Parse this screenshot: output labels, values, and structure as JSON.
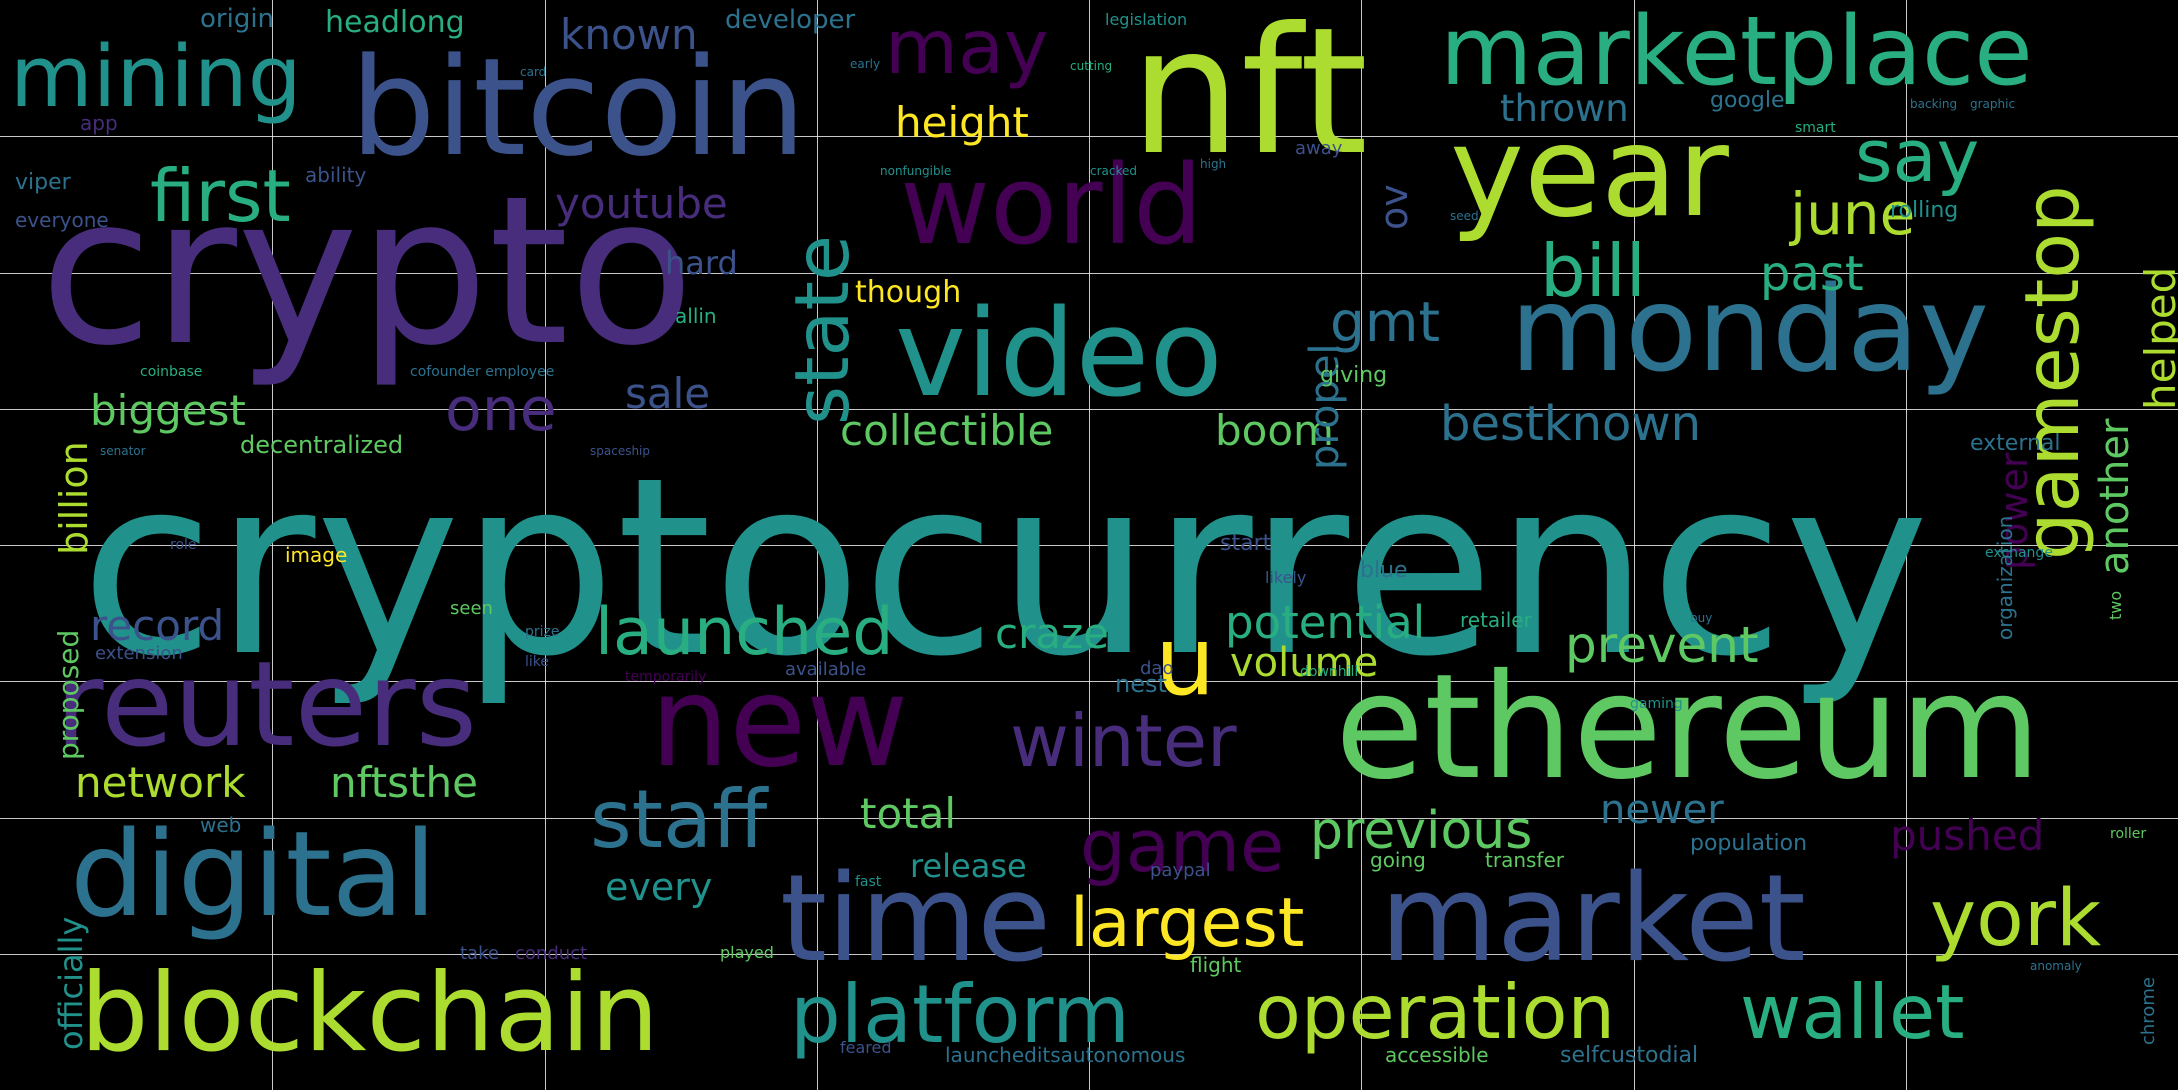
{
  "colors": {
    "background": "#000000",
    "grid": "#ebebeb",
    "palette": {
      "d": "#440154",
      "p": "#472d7b",
      "b": "#3b528b",
      "t": "#2c728e",
      "c": "#21918c",
      "g": "#28ae80",
      "l": "#5ec962",
      "y": "#addc30",
      "s": "#fde725"
    }
  },
  "words": [
    {
      "text": "cryptocurrency",
      "color": "c"
    },
    {
      "text": "crypto",
      "color": "p"
    },
    {
      "text": "nft",
      "color": "y"
    },
    {
      "text": "bitcoin",
      "color": "b"
    },
    {
      "text": "marketplace",
      "color": "g"
    },
    {
      "text": "year",
      "color": "y"
    },
    {
      "text": "mining",
      "color": "c"
    },
    {
      "text": "world",
      "color": "d"
    },
    {
      "text": "video",
      "color": "c"
    },
    {
      "text": "monday",
      "color": "t"
    },
    {
      "text": "ethereum",
      "color": "l"
    },
    {
      "text": "reuters",
      "color": "p"
    },
    {
      "text": "new",
      "color": "d"
    },
    {
      "text": "digital",
      "color": "t"
    },
    {
      "text": "time",
      "color": "b"
    },
    {
      "text": "market",
      "color": "b"
    },
    {
      "text": "blockchain",
      "color": "y"
    },
    {
      "text": "platform",
      "color": "c"
    },
    {
      "text": "operation",
      "color": "y"
    },
    {
      "text": "wallet",
      "color": "g"
    },
    {
      "text": "york",
      "color": "y"
    },
    {
      "text": "u",
      "color": "s"
    },
    {
      "text": "largest",
      "color": "s"
    },
    {
      "text": "staff",
      "color": "t"
    },
    {
      "text": "game",
      "color": "d"
    },
    {
      "text": "winter",
      "color": "p"
    },
    {
      "text": "launched",
      "color": "g"
    },
    {
      "text": "gamestop",
      "color": "y"
    },
    {
      "text": "first",
      "color": "g"
    },
    {
      "text": "may",
      "color": "d"
    },
    {
      "text": "say",
      "color": "g"
    },
    {
      "text": "bill",
      "color": "g"
    },
    {
      "text": "june",
      "color": "y"
    },
    {
      "text": "state",
      "color": "c"
    },
    {
      "text": "one",
      "color": "p"
    },
    {
      "text": "gmt",
      "color": "t"
    },
    {
      "text": "previous",
      "color": "l"
    },
    {
      "text": "prevent",
      "color": "l"
    },
    {
      "text": "potential",
      "color": "g"
    },
    {
      "text": "craze",
      "color": "g"
    },
    {
      "text": "record",
      "color": "b"
    },
    {
      "text": "biggest",
      "color": "l"
    },
    {
      "text": "collectible",
      "color": "l"
    },
    {
      "text": "boom",
      "color": "l"
    },
    {
      "text": "bestknown",
      "color": "t"
    },
    {
      "text": "network",
      "color": "y"
    },
    {
      "text": "nftsthe",
      "color": "l"
    },
    {
      "text": "total",
      "color": "l"
    },
    {
      "text": "youtube",
      "color": "p"
    },
    {
      "text": "known",
      "color": "b"
    },
    {
      "text": "height",
      "color": "s"
    },
    {
      "text": "thrown",
      "color": "t"
    },
    {
      "text": "past",
      "color": "g"
    },
    {
      "text": "sale",
      "color": "b"
    },
    {
      "text": "volume",
      "color": "y"
    },
    {
      "text": "newer",
      "color": "t"
    },
    {
      "text": "pushed",
      "color": "d"
    },
    {
      "text": "every",
      "color": "c"
    },
    {
      "text": "release",
      "color": "c"
    },
    {
      "text": "billion",
      "color": "y"
    },
    {
      "text": "officially",
      "color": "c"
    },
    {
      "text": "proposed",
      "color": "l"
    },
    {
      "text": "helped",
      "color": "y"
    },
    {
      "text": "another",
      "color": "l"
    },
    {
      "text": "power",
      "color": "d"
    },
    {
      "text": "propel",
      "color": "t"
    },
    {
      "text": "ov",
      "color": "b"
    },
    {
      "text": "headlong",
      "color": "g"
    },
    {
      "text": "origin",
      "color": "t"
    },
    {
      "text": "developer",
      "color": "t"
    },
    {
      "text": "legislation",
      "color": "c"
    },
    {
      "text": "google",
      "color": "t"
    },
    {
      "text": "viper",
      "color": "t"
    },
    {
      "text": "ability",
      "color": "b"
    },
    {
      "text": "everyone",
      "color": "b"
    },
    {
      "text": "though",
      "color": "s"
    },
    {
      "text": "hard",
      "color": "b"
    },
    {
      "text": "allin",
      "color": "g"
    },
    {
      "text": "decentralized",
      "color": "l"
    },
    {
      "text": "extension",
      "color": "b"
    },
    {
      "text": "giving",
      "color": "l"
    },
    {
      "text": "retailer",
      "color": "g"
    },
    {
      "text": "rolling",
      "color": "c"
    },
    {
      "text": "external",
      "color": "t"
    },
    {
      "text": "organization",
      "color": "t"
    },
    {
      "text": "nest",
      "color": "t"
    },
    {
      "text": "blue",
      "color": "t"
    },
    {
      "text": "start",
      "color": "b"
    },
    {
      "text": "image",
      "color": "s"
    },
    {
      "text": "seen",
      "color": "l"
    },
    {
      "text": "available",
      "color": "b"
    },
    {
      "text": "paypal",
      "color": "b"
    },
    {
      "text": "going",
      "color": "l"
    },
    {
      "text": "transfer",
      "color": "l"
    },
    {
      "text": "population",
      "color": "t"
    },
    {
      "text": "web",
      "color": "t"
    },
    {
      "text": "take",
      "color": "b"
    },
    {
      "text": "conduct",
      "color": "p"
    },
    {
      "text": "played",
      "color": "l"
    },
    {
      "text": "flight",
      "color": "l"
    },
    {
      "text": "launcheditsautonomous",
      "color": "t"
    },
    {
      "text": "accessible",
      "color": "l"
    },
    {
      "text": "selfcustodial",
      "color": "t"
    },
    {
      "text": "feared",
      "color": "b"
    },
    {
      "text": "chrome",
      "color": "t"
    },
    {
      "text": "app",
      "color": "p"
    },
    {
      "text": "card",
      "color": "t"
    },
    {
      "text": "early",
      "color": "t"
    },
    {
      "text": "cutting",
      "color": "g"
    },
    {
      "text": "nonfungible",
      "color": "c"
    },
    {
      "text": "cracked",
      "color": "c"
    },
    {
      "text": "high",
      "color": "t"
    },
    {
      "text": "away",
      "color": "b"
    },
    {
      "text": "coinbase",
      "color": "g"
    },
    {
      "text": "cofounder employee",
      "color": "t"
    },
    {
      "text": "spaceship",
      "color": "b"
    },
    {
      "text": "senator",
      "color": "t"
    },
    {
      "text": "temporarily",
      "color": "d"
    },
    {
      "text": "downhill",
      "color": "g"
    },
    {
      "text": "exchange",
      "color": "c"
    },
    {
      "text": "two",
      "color": "l"
    },
    {
      "text": "buy",
      "color": "t"
    },
    {
      "text": "role",
      "color": "b"
    },
    {
      "text": "like",
      "color": "b"
    },
    {
      "text": "prize",
      "color": "t"
    },
    {
      "text": "likely",
      "color": "b"
    },
    {
      "text": "dao",
      "color": "b"
    },
    {
      "text": "gaming",
      "color": "c"
    },
    {
      "text": "seed",
      "color": "t"
    },
    {
      "text": "smart",
      "color": "g"
    },
    {
      "text": "backing",
      "color": "t"
    },
    {
      "text": "graphic",
      "color": "t"
    },
    {
      "text": "anomaly",
      "color": "t"
    },
    {
      "text": "roller",
      "color": "l"
    },
    {
      "text": "fast",
      "color": "c"
    }
  ]
}
